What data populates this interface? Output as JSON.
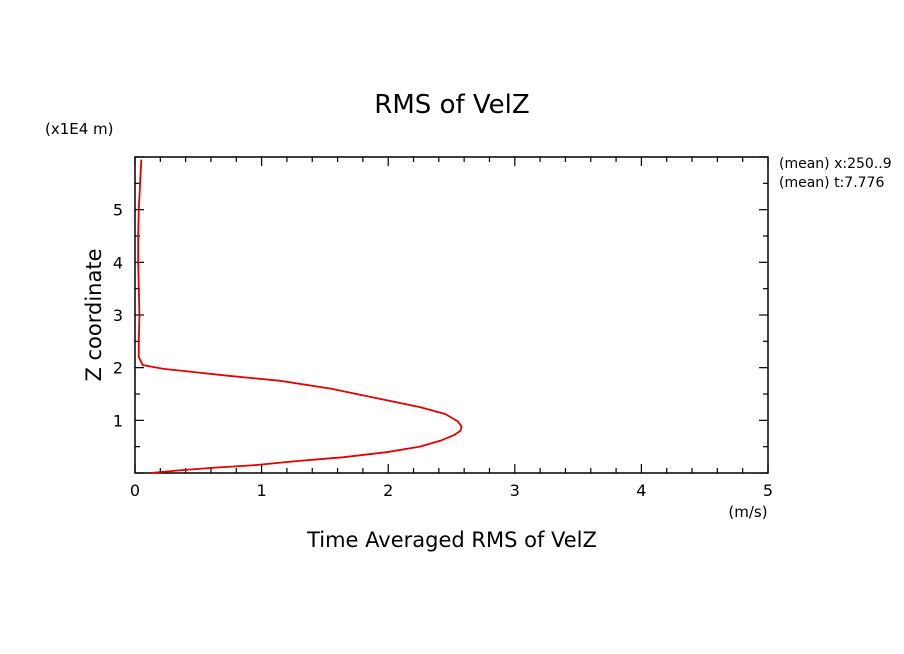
{
  "chart_data": {
    "type": "line",
    "title": "RMS of VelZ",
    "xlabel": "Time Averaged RMS of VelZ",
    "xunit": "(m/s)",
    "ylabel": "Z coordinate",
    "yunit": "(x1E4 m)",
    "xlim": [
      0,
      5
    ],
    "ylim": [
      0,
      6
    ],
    "x_ticks": [
      "0",
      "1",
      "2",
      "3",
      "4",
      "5"
    ],
    "y_ticks": [
      "1",
      "2",
      "3",
      "4",
      "5"
    ],
    "annotations": [
      "(mean) x:250..9",
      "(mean) t:7.776"
    ],
    "line_color": "#e00000",
    "grid": false,
    "series": [
      {
        "x": [
          0.12,
          0.35,
          0.62,
          0.95,
          1.25,
          1.65,
          2.0,
          2.25,
          2.42,
          2.52,
          2.57,
          2.58,
          2.55,
          2.45,
          2.25,
          1.95,
          1.55,
          1.15,
          0.72,
          0.45,
          0.22,
          0.06,
          0.03,
          0.03,
          0.035,
          0.03,
          0.025,
          0.025,
          0.03,
          0.04,
          0.05
        ],
        "y": [
          0.0,
          0.05,
          0.1,
          0.15,
          0.22,
          0.3,
          0.4,
          0.5,
          0.62,
          0.72,
          0.8,
          0.88,
          0.98,
          1.12,
          1.25,
          1.4,
          1.6,
          1.75,
          1.85,
          1.92,
          1.98,
          2.05,
          2.2,
          2.5,
          3.0,
          3.5,
          4.0,
          4.5,
          5.0,
          5.5,
          5.95
        ]
      }
    ]
  }
}
